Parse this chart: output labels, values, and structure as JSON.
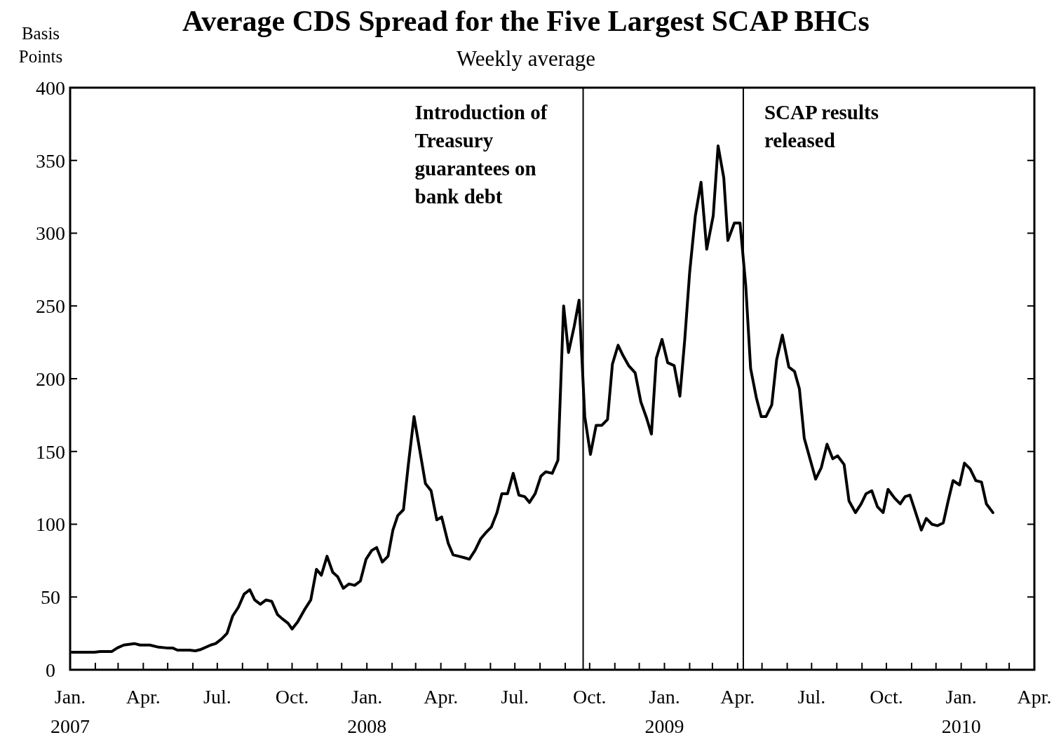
{
  "chart_data": {
    "type": "line",
    "title": "Average CDS Spread for the Five Largest SCAP BHCs",
    "subtitle": "Weekly average",
    "ylabel": "Basis Points",
    "x": [
      "2007-01-03",
      "2007-01-31",
      "2007-02-07",
      "2007-02-21",
      "2007-02-28",
      "2007-03-08",
      "2007-03-21",
      "2007-03-28",
      "2007-04-09",
      "2007-04-20",
      "2007-04-30",
      "2007-05-07",
      "2007-05-13",
      "2007-05-28",
      "2007-06-04",
      "2007-06-11",
      "2007-06-23",
      "2007-06-29",
      "2007-07-06",
      "2007-07-13",
      "2007-07-20",
      "2007-07-27",
      "2007-08-03",
      "2007-08-10",
      "2007-08-16",
      "2007-08-23",
      "2007-08-30",
      "2007-09-06",
      "2007-09-13",
      "2007-09-19",
      "2007-09-26",
      "2007-10-01",
      "2007-10-08",
      "2007-10-16",
      "2007-10-24",
      "2007-10-31",
      "2007-11-06",
      "2007-11-13",
      "2007-11-20",
      "2007-11-26",
      "2007-12-03",
      "2007-12-10",
      "2007-12-17",
      "2007-12-24",
      "2007-12-31",
      "2008-01-07",
      "2008-01-13",
      "2008-01-20",
      "2008-01-27",
      "2008-02-02",
      "2008-02-08",
      "2008-02-15",
      "2008-02-21",
      "2008-02-28",
      "2008-03-06",
      "2008-03-13",
      "2008-03-20",
      "2008-03-27",
      "2008-04-02",
      "2008-04-10",
      "2008-04-16",
      "2008-04-23",
      "2008-04-30",
      "2008-05-06",
      "2008-05-13",
      "2008-05-20",
      "2008-05-26",
      "2008-06-02",
      "2008-06-09",
      "2008-06-15",
      "2008-06-22",
      "2008-06-29",
      "2008-07-06",
      "2008-07-13",
      "2008-07-19",
      "2008-07-26",
      "2008-08-02",
      "2008-08-08",
      "2008-08-16",
      "2008-08-23",
      "2008-08-30",
      "2008-09-05",
      "2008-09-12",
      "2008-09-18",
      "2008-09-25",
      "2008-10-02",
      "2008-10-09",
      "2008-10-16",
      "2008-10-23",
      "2008-10-29",
      "2008-11-05",
      "2008-11-11",
      "2008-11-18",
      "2008-11-26",
      "2008-12-03",
      "2008-12-10",
      "2008-12-16",
      "2008-12-22",
      "2008-12-29",
      "2009-01-05",
      "2009-01-13",
      "2009-01-20",
      "2009-01-26",
      "2009-02-01",
      "2009-02-08",
      "2009-02-15",
      "2009-02-22",
      "2009-03-02",
      "2009-03-08",
      "2009-03-15",
      "2009-03-20",
      "2009-03-28",
      "2009-04-04",
      "2009-04-11",
      "2009-04-17",
      "2009-04-24",
      "2009-04-30",
      "2009-05-06",
      "2009-05-13",
      "2009-05-19",
      "2009-05-26",
      "2009-06-03",
      "2009-06-10",
      "2009-06-16",
      "2009-06-22",
      "2009-06-29",
      "2009-07-06",
      "2009-07-13",
      "2009-07-20",
      "2009-07-27",
      "2009-08-02",
      "2009-08-10",
      "2009-08-16",
      "2009-08-24",
      "2009-08-31",
      "2009-09-06",
      "2009-09-13",
      "2009-09-20",
      "2009-09-27",
      "2009-10-03",
      "2009-10-11",
      "2009-10-18",
      "2009-10-24",
      "2009-10-30",
      "2009-11-06",
      "2009-11-13",
      "2009-11-19",
      "2009-11-26",
      "2009-12-03",
      "2009-12-10",
      "2009-12-16",
      "2009-12-22",
      "2009-12-30",
      "2010-01-05",
      "2010-01-12",
      "2010-01-19",
      "2010-01-26",
      "2010-02-01",
      "2010-02-09"
    ],
    "series": [
      {
        "color": "#000000",
        "values": [
          12,
          12,
          12.5,
          12.5,
          15,
          17,
          18,
          17,
          17,
          15.5,
          15,
          15,
          13.5,
          13.5,
          13,
          14,
          17,
          18,
          21,
          25,
          37,
          43,
          52,
          55,
          48,
          45,
          48,
          47,
          38,
          35,
          32,
          28,
          33,
          41,
          48,
          69,
          65,
          78,
          67,
          64,
          56,
          59,
          58,
          61,
          76,
          82,
          84,
          74,
          78,
          96,
          106,
          110,
          141,
          174,
          151,
          128,
          123,
          103,
          105,
          87,
          79,
          78,
          77,
          76,
          82,
          90,
          94,
          98,
          108,
          121,
          121,
          135,
          120,
          119,
          115,
          121,
          133,
          136,
          135,
          144,
          250,
          218,
          236,
          254,
          174,
          148,
          168,
          168,
          172,
          210,
          223,
          216,
          209,
          204,
          184,
          173,
          162,
          214,
          227,
          211,
          209,
          188,
          227,
          273,
          312,
          335,
          289,
          312,
          360,
          338,
          295,
          307,
          307,
          264,
          207,
          187,
          174,
          174,
          182,
          213,
          230,
          208,
          205,
          193,
          159,
          145,
          131,
          139,
          155,
          145,
          147,
          141,
          116,
          108,
          114,
          121,
          123,
          112,
          108,
          124,
          118,
          114,
          119,
          120,
          108,
          96,
          104,
          100,
          99,
          101,
          116,
          130,
          127,
          142,
          138,
          130,
          129,
          114,
          108
        ]
      }
    ],
    "xlim": [
      "2007-01-01",
      "2010-04-01"
    ],
    "xticks": [
      {
        "value": "2007-01-01",
        "label": "Jan.\n2007"
      },
      {
        "value": "2007-02-01",
        "label": null
      },
      {
        "value": "2007-03-01",
        "label": null
      },
      {
        "value": "2007-04-01",
        "label": "Apr."
      },
      {
        "value": "2007-05-01",
        "label": null
      },
      {
        "value": "2007-06-01",
        "label": null
      },
      {
        "value": "2007-07-01",
        "label": "Jul."
      },
      {
        "value": "2007-08-01",
        "label": null
      },
      {
        "value": "2007-09-01",
        "label": null
      },
      {
        "value": "2007-10-01",
        "label": "Oct."
      },
      {
        "value": "2007-11-01",
        "label": null
      },
      {
        "value": "2007-12-01",
        "label": null
      },
      {
        "value": "2008-01-01",
        "label": "Jan.\n2008"
      },
      {
        "value": "2008-02-01",
        "label": null
      },
      {
        "value": "2008-03-01",
        "label": null
      },
      {
        "value": "2008-04-01",
        "label": "Apr."
      },
      {
        "value": "2008-05-01",
        "label": null
      },
      {
        "value": "2008-06-01",
        "label": null
      },
      {
        "value": "2008-07-01",
        "label": "Jul."
      },
      {
        "value": "2008-08-01",
        "label": null
      },
      {
        "value": "2008-09-01",
        "label": null
      },
      {
        "value": "2008-10-01",
        "label": "Oct."
      },
      {
        "value": "2008-11-01",
        "label": null
      },
      {
        "value": "2008-12-01",
        "label": null
      },
      {
        "value": "2009-01-01",
        "label": "Jan.\n2009"
      },
      {
        "value": "2009-02-01",
        "label": null
      },
      {
        "value": "2009-03-01",
        "label": null
      },
      {
        "value": "2009-04-01",
        "label": "Apr."
      },
      {
        "value": "2009-05-01",
        "label": null
      },
      {
        "value": "2009-06-01",
        "label": null
      },
      {
        "value": "2009-07-01",
        "label": "Jul."
      },
      {
        "value": "2009-08-01",
        "label": null
      },
      {
        "value": "2009-09-01",
        "label": null
      },
      {
        "value": "2009-10-01",
        "label": "Oct."
      },
      {
        "value": "2009-11-01",
        "label": null
      },
      {
        "value": "2009-12-01",
        "label": null
      },
      {
        "value": "2010-01-01",
        "label": "Jan.\n2010"
      },
      {
        "value": "2010-02-01",
        "label": null
      },
      {
        "value": "2010-03-01",
        "label": null
      },
      {
        "value": "2010-04-01",
        "label": "Apr."
      }
    ],
    "ylim": [
      0,
      400
    ],
    "yticks": [
      0,
      50,
      100,
      150,
      200,
      250,
      300,
      350,
      400
    ],
    "ref_lines": [
      {
        "axis": "x",
        "value": "2008-09-23",
        "color": "#000000",
        "label": "Introduction of Treasury guarantees on bank debt"
      },
      {
        "axis": "x",
        "value": "2009-04-08",
        "color": "#000000",
        "label": "SCAP results released"
      }
    ],
    "line_style": "solid"
  }
}
